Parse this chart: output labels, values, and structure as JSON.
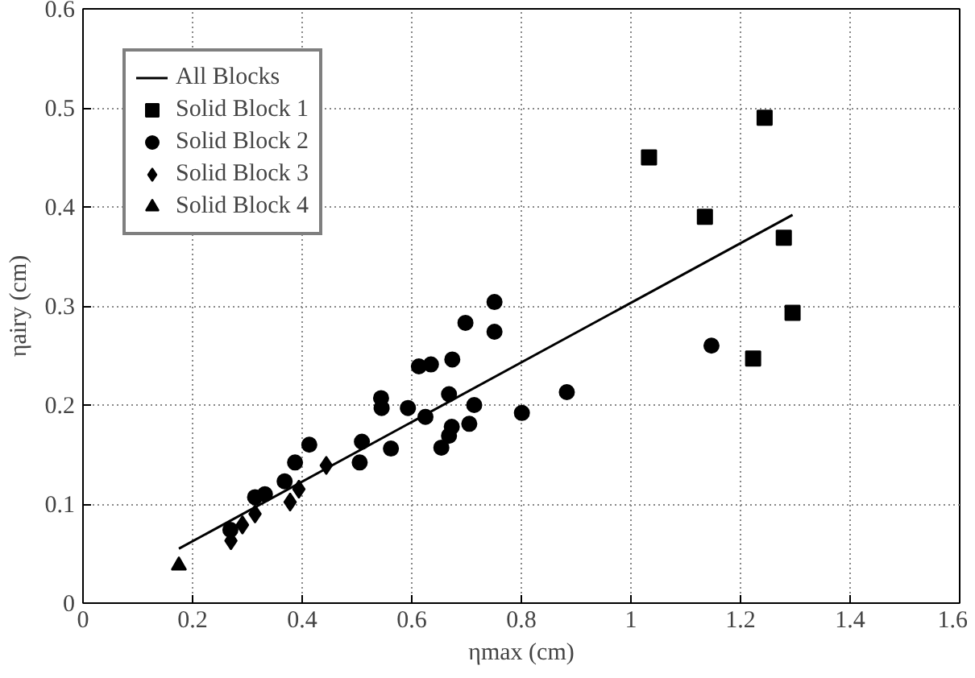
{
  "chart_data": {
    "type": "scatter",
    "xlabel": "ηmax (cm)",
    "ylabel": "ηairy (cm)",
    "xlim": [
      0,
      1.6
    ],
    "ylim": [
      0,
      0.6
    ],
    "xticks": [
      0,
      0.2,
      0.4,
      0.6,
      0.8,
      1,
      1.2,
      1.4,
      1.6
    ],
    "yticks": [
      0,
      0.1,
      0.2,
      0.3,
      0.4,
      0.5,
      0.6
    ],
    "grid": true,
    "legend": "top left",
    "series": [
      {
        "name": "All Blocks",
        "type": "line",
        "color": "#000000",
        "line_style": "solid",
        "x": [
          0.175,
          1.295
        ],
        "values": [
          0.055,
          0.392
        ]
      },
      {
        "name": "Solid Block 1",
        "color": "#000000",
        "marker": "square",
        "x": [
          1.033,
          1.244,
          1.135,
          1.279,
          1.295,
          1.223
        ],
        "values": [
          0.45,
          0.49,
          0.39,
          0.369,
          0.293,
          0.247
        ]
      },
      {
        "name": "Solid Block 2",
        "color": "#000000",
        "marker": "circle",
        "x": [
          1.147,
          0.751,
          0.751,
          0.698,
          0.674,
          0.613,
          0.635,
          0.668,
          0.714,
          0.801,
          0.883,
          0.593,
          0.625,
          0.544,
          0.545,
          0.509,
          0.562,
          0.505,
          0.654,
          0.673,
          0.668,
          0.705,
          0.413,
          0.387,
          0.368,
          0.332,
          0.314,
          0.269
        ],
        "values": [
          0.26,
          0.304,
          0.274,
          0.283,
          0.246,
          0.239,
          0.241,
          0.211,
          0.2,
          0.192,
          0.213,
          0.197,
          0.188,
          0.207,
          0.197,
          0.163,
          0.156,
          0.142,
          0.157,
          0.178,
          0.169,
          0.181,
          0.16,
          0.142,
          0.123,
          0.11,
          0.107,
          0.074
        ]
      },
      {
        "name": "Solid Block 3",
        "color": "#000000",
        "marker": "diamond",
        "x": [
          0.378,
          0.394,
          0.444,
          0.314,
          0.291,
          0.27
        ],
        "values": [
          0.102,
          0.115,
          0.139,
          0.09,
          0.079,
          0.063
        ]
      },
      {
        "name": "Solid Block 4",
        "color": "#000000",
        "marker": "triangle",
        "x": [
          0.175
        ],
        "values": [
          0.038
        ]
      }
    ]
  }
}
